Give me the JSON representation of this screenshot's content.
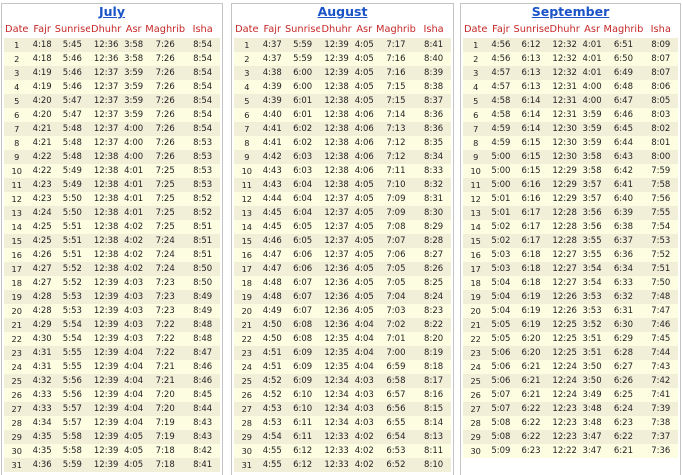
{
  "columns": [
    "Date",
    "Fajr",
    "Sunrise",
    "Dhuhr",
    "Asr",
    "Maghrib",
    "Isha"
  ],
  "months": [
    {
      "name": "July",
      "rows": [
        [
          "1",
          "4:18",
          "5:45",
          "12:36",
          "3:58",
          "7:26",
          "8:54"
        ],
        [
          "2",
          "4:18",
          "5:46",
          "12:36",
          "3:58",
          "7:26",
          "8:54"
        ],
        [
          "3",
          "4:19",
          "5:46",
          "12:37",
          "3:59",
          "7:26",
          "8:54"
        ],
        [
          "4",
          "4:19",
          "5:46",
          "12:37",
          "3:59",
          "7:26",
          "8:54"
        ],
        [
          "5",
          "4:20",
          "5:47",
          "12:37",
          "3:59",
          "7:26",
          "8:54"
        ],
        [
          "6",
          "4:20",
          "5:47",
          "12:37",
          "3:59",
          "7:26",
          "8:54"
        ],
        [
          "7",
          "4:21",
          "5:48",
          "12:37",
          "4:00",
          "7:26",
          "8:54"
        ],
        [
          "8",
          "4:21",
          "5:48",
          "12:37",
          "4:00",
          "7:26",
          "8:53"
        ],
        [
          "9",
          "4:22",
          "5:48",
          "12:38",
          "4:00",
          "7:26",
          "8:53"
        ],
        [
          "10",
          "4:22",
          "5:49",
          "12:38",
          "4:01",
          "7:25",
          "8:53"
        ],
        [
          "11",
          "4:23",
          "5:49",
          "12:38",
          "4:01",
          "7:25",
          "8:53"
        ],
        [
          "12",
          "4:23",
          "5:50",
          "12:38",
          "4:01",
          "7:25",
          "8:52"
        ],
        [
          "13",
          "4:24",
          "5:50",
          "12:38",
          "4:01",
          "7:25",
          "8:52"
        ],
        [
          "14",
          "4:25",
          "5:51",
          "12:38",
          "4:02",
          "7:25",
          "8:51"
        ],
        [
          "15",
          "4:25",
          "5:51",
          "12:38",
          "4:02",
          "7:24",
          "8:51"
        ],
        [
          "16",
          "4:26",
          "5:51",
          "12:38",
          "4:02",
          "7:24",
          "8:51"
        ],
        [
          "17",
          "4:27",
          "5:52",
          "12:38",
          "4:02",
          "7:24",
          "8:50"
        ],
        [
          "18",
          "4:27",
          "5:52",
          "12:39",
          "4:03",
          "7:23",
          "8:50"
        ],
        [
          "19",
          "4:28",
          "5:53",
          "12:39",
          "4:03",
          "7:23",
          "8:49"
        ],
        [
          "20",
          "4:28",
          "5:53",
          "12:39",
          "4:03",
          "7:23",
          "8:49"
        ],
        [
          "21",
          "4:29",
          "5:54",
          "12:39",
          "4:03",
          "7:22",
          "8:48"
        ],
        [
          "22",
          "4:30",
          "5:54",
          "12:39",
          "4:03",
          "7:22",
          "8:48"
        ],
        [
          "23",
          "4:31",
          "5:55",
          "12:39",
          "4:04",
          "7:22",
          "8:47"
        ],
        [
          "24",
          "4:31",
          "5:55",
          "12:39",
          "4:04",
          "7:21",
          "8:46"
        ],
        [
          "25",
          "4:32",
          "5:56",
          "12:39",
          "4:04",
          "7:21",
          "8:46"
        ],
        [
          "26",
          "4:33",
          "5:56",
          "12:39",
          "4:04",
          "7:20",
          "8:45"
        ],
        [
          "27",
          "4:33",
          "5:57",
          "12:39",
          "4:04",
          "7:20",
          "8:44"
        ],
        [
          "28",
          "4:34",
          "5:57",
          "12:39",
          "4:04",
          "7:19",
          "8:43"
        ],
        [
          "29",
          "4:35",
          "5:58",
          "12:39",
          "4:05",
          "7:19",
          "8:43"
        ],
        [
          "30",
          "4:35",
          "5:58",
          "12:39",
          "4:05",
          "7:18",
          "8:42"
        ],
        [
          "31",
          "4:36",
          "5:59",
          "12:39",
          "4:05",
          "7:18",
          "8:41"
        ]
      ]
    },
    {
      "name": "August",
      "rows": [
        [
          "1",
          "4:37",
          "5:59",
          "12:39",
          "4:05",
          "7:17",
          "8:41"
        ],
        [
          "2",
          "4:37",
          "5:59",
          "12:39",
          "4:05",
          "7:16",
          "8:40"
        ],
        [
          "3",
          "4:38",
          "6:00",
          "12:39",
          "4:05",
          "7:16",
          "8:39"
        ],
        [
          "4",
          "4:39",
          "6:00",
          "12:38",
          "4:05",
          "7:15",
          "8:38"
        ],
        [
          "5",
          "4:39",
          "6:01",
          "12:38",
          "4:05",
          "7:15",
          "8:37"
        ],
        [
          "6",
          "4:40",
          "6:01",
          "12:38",
          "4:06",
          "7:14",
          "8:36"
        ],
        [
          "7",
          "4:41",
          "6:02",
          "12:38",
          "4:06",
          "7:13",
          "8:36"
        ],
        [
          "8",
          "4:41",
          "6:02",
          "12:38",
          "4:06",
          "7:12",
          "8:35"
        ],
        [
          "9",
          "4:42",
          "6:03",
          "12:38",
          "4:06",
          "7:12",
          "8:34"
        ],
        [
          "10",
          "4:43",
          "6:03",
          "12:38",
          "4:06",
          "7:11",
          "8:33"
        ],
        [
          "11",
          "4:43",
          "6:04",
          "12:38",
          "4:05",
          "7:10",
          "8:32"
        ],
        [
          "12",
          "4:44",
          "6:04",
          "12:37",
          "4:05",
          "7:09",
          "8:31"
        ],
        [
          "13",
          "4:45",
          "6:04",
          "12:37",
          "4:05",
          "7:09",
          "8:30"
        ],
        [
          "14",
          "4:45",
          "6:05",
          "12:37",
          "4:05",
          "7:08",
          "8:29"
        ],
        [
          "15",
          "4:46",
          "6:05",
          "12:37",
          "4:05",
          "7:07",
          "8:28"
        ],
        [
          "16",
          "4:47",
          "6:06",
          "12:37",
          "4:05",
          "7:06",
          "8:27"
        ],
        [
          "17",
          "4:47",
          "6:06",
          "12:36",
          "4:05",
          "7:05",
          "8:26"
        ],
        [
          "18",
          "4:48",
          "6:07",
          "12:36",
          "4:05",
          "7:05",
          "8:25"
        ],
        [
          "19",
          "4:48",
          "6:07",
          "12:36",
          "4:05",
          "7:04",
          "8:24"
        ],
        [
          "20",
          "4:49",
          "6:07",
          "12:36",
          "4:05",
          "7:03",
          "8:23"
        ],
        [
          "21",
          "4:50",
          "6:08",
          "12:36",
          "4:04",
          "7:02",
          "8:22"
        ],
        [
          "22",
          "4:50",
          "6:08",
          "12:35",
          "4:04",
          "7:01",
          "8:20"
        ],
        [
          "23",
          "4:51",
          "6:09",
          "12:35",
          "4:04",
          "7:00",
          "8:19"
        ],
        [
          "24",
          "4:51",
          "6:09",
          "12:35",
          "4:04",
          "6:59",
          "8:18"
        ],
        [
          "25",
          "4:52",
          "6:09",
          "12:34",
          "4:03",
          "6:58",
          "8:17"
        ],
        [
          "26",
          "4:52",
          "6:10",
          "12:34",
          "4:03",
          "6:57",
          "8:16"
        ],
        [
          "27",
          "4:53",
          "6:10",
          "12:34",
          "4:03",
          "6:56",
          "8:15"
        ],
        [
          "28",
          "4:53",
          "6:11",
          "12:34",
          "4:03",
          "6:55",
          "8:14"
        ],
        [
          "29",
          "4:54",
          "6:11",
          "12:33",
          "4:02",
          "6:54",
          "8:13"
        ],
        [
          "30",
          "4:55",
          "6:12",
          "12:33",
          "4:02",
          "6:53",
          "8:11"
        ],
        [
          "31",
          "4:55",
          "6:12",
          "12:33",
          "4:02",
          "6:52",
          "8:10"
        ]
      ]
    },
    {
      "name": "September",
      "rows": [
        [
          "1",
          "4:56",
          "6:12",
          "12:32",
          "4:01",
          "6:51",
          "8:09"
        ],
        [
          "2",
          "4:56",
          "6:13",
          "12:32",
          "4:01",
          "6:50",
          "8:07"
        ],
        [
          "3",
          "4:57",
          "6:13",
          "12:32",
          "4:01",
          "6:49",
          "8:07"
        ],
        [
          "4",
          "4:57",
          "6:13",
          "12:31",
          "4:00",
          "6:48",
          "8:06"
        ],
        [
          "5",
          "4:58",
          "6:14",
          "12:31",
          "4:00",
          "6:47",
          "8:05"
        ],
        [
          "6",
          "4:58",
          "6:14",
          "12:31",
          "3:59",
          "6:46",
          "8:03"
        ],
        [
          "7",
          "4:59",
          "6:14",
          "12:30",
          "3:59",
          "6:45",
          "8:02"
        ],
        [
          "8",
          "4:59",
          "6:15",
          "12:30",
          "3:59",
          "6:44",
          "8:01"
        ],
        [
          "9",
          "5:00",
          "6:15",
          "12:30",
          "3:58",
          "6:43",
          "8:00"
        ],
        [
          "10",
          "5:00",
          "6:15",
          "12:29",
          "3:58",
          "6:42",
          "7:59"
        ],
        [
          "11",
          "5:00",
          "6:16",
          "12:29",
          "3:57",
          "6:41",
          "7:58"
        ],
        [
          "12",
          "5:01",
          "6:16",
          "12:29",
          "3:57",
          "6:40",
          "7:56"
        ],
        [
          "13",
          "5:01",
          "6:17",
          "12:28",
          "3:56",
          "6:39",
          "7:55"
        ],
        [
          "14",
          "5:02",
          "6:17",
          "12:28",
          "3:56",
          "6:38",
          "7:54"
        ],
        [
          "15",
          "5:02",
          "6:17",
          "12:28",
          "3:55",
          "6:37",
          "7:53"
        ],
        [
          "16",
          "5:03",
          "6:18",
          "12:27",
          "3:55",
          "6:36",
          "7:52"
        ],
        [
          "17",
          "5:03",
          "6:18",
          "12:27",
          "3:54",
          "6:34",
          "7:51"
        ],
        [
          "18",
          "5:04",
          "6:18",
          "12:27",
          "3:54",
          "6:33",
          "7:50"
        ],
        [
          "19",
          "5:04",
          "6:19",
          "12:26",
          "3:53",
          "6:32",
          "7:48"
        ],
        [
          "20",
          "5:04",
          "6:19",
          "12:26",
          "3:53",
          "6:31",
          "7:47"
        ],
        [
          "21",
          "5:05",
          "6:19",
          "12:25",
          "3:52",
          "6:30",
          "7:46"
        ],
        [
          "22",
          "5:05",
          "6:20",
          "12:25",
          "3:51",
          "6:29",
          "7:45"
        ],
        [
          "23",
          "5:06",
          "6:20",
          "12:25",
          "3:51",
          "6:28",
          "7:44"
        ],
        [
          "24",
          "5:06",
          "6:21",
          "12:24",
          "3:50",
          "6:27",
          "7:43"
        ],
        [
          "25",
          "5:06",
          "6:21",
          "12:24",
          "3:50",
          "6:26",
          "7:42"
        ],
        [
          "26",
          "5:07",
          "6:21",
          "12:24",
          "3:49",
          "6:25",
          "7:41"
        ],
        [
          "27",
          "5:07",
          "6:22",
          "12:23",
          "3:48",
          "6:24",
          "7:39"
        ],
        [
          "28",
          "5:08",
          "6:22",
          "12:23",
          "3:48",
          "6:23",
          "7:38"
        ],
        [
          "29",
          "5:08",
          "6:22",
          "12:23",
          "3:47",
          "6:22",
          "7:37"
        ],
        [
          "30",
          "5:09",
          "6:23",
          "12:22",
          "3:47",
          "6:21",
          "7:36"
        ]
      ]
    }
  ]
}
